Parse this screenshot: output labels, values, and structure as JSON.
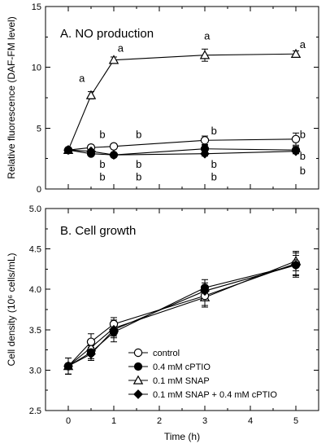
{
  "chart_data": [
    {
      "type": "line",
      "title": "A. NO production",
      "xlabel": "",
      "ylabel": "Relative fluorescence (DAF-FM level)",
      "xlim": [
        -0.5,
        5.5
      ],
      "ylim": [
        0,
        15
      ],
      "x_ticks": [
        0,
        1,
        2,
        3,
        4,
        5
      ],
      "y_ticks": [
        0,
        5,
        10,
        15
      ],
      "x_tick_labels_shown": false,
      "series": [
        {
          "name": "control",
          "marker": "circle-open",
          "x": [
            0,
            0.5,
            1,
            3,
            5
          ],
          "y": [
            3.2,
            3.4,
            3.5,
            4.0,
            4.1
          ],
          "err": [
            0.15,
            0.2,
            0.2,
            0.35,
            0.5
          ]
        },
        {
          "name": "0.4 mM cPTIO",
          "marker": "circle-filled",
          "x": [
            0,
            0.5,
            1,
            3,
            5
          ],
          "y": [
            3.2,
            2.9,
            2.8,
            3.3,
            3.2
          ],
          "err": [
            0.1,
            0.15,
            0.15,
            0.3,
            0.3
          ]
        },
        {
          "name": "0.1 mM SNAP",
          "marker": "triangle-open",
          "x": [
            0,
            0.5,
            1,
            3,
            5
          ],
          "y": [
            3.2,
            7.7,
            10.6,
            11.0,
            11.1
          ],
          "err": [
            0.1,
            0.3,
            0.25,
            0.5,
            0.25
          ]
        },
        {
          "name": "0.1 mM SNAP + 0.4 mM cPTIO",
          "marker": "diamond-filled",
          "x": [
            0,
            0.5,
            1,
            3,
            5
          ],
          "y": [
            3.2,
            3.1,
            2.8,
            2.9,
            3.1
          ],
          "err": [
            0.1,
            0.15,
            0.15,
            0.2,
            0.2
          ]
        }
      ],
      "annotations": [
        {
          "text": "a",
          "x": 1.15,
          "y": 11.3
        },
        {
          "text": "a",
          "x": 3.05,
          "y": 12.3
        },
        {
          "text": "a",
          "x": 5.15,
          "y": 11.6
        },
        {
          "text": "a",
          "x": 0.3,
          "y": 8.8
        },
        {
          "text": "b",
          "x": 0.75,
          "y": 4.2
        },
        {
          "text": "b",
          "x": 1.55,
          "y": 4.2
        },
        {
          "text": "b",
          "x": 3.2,
          "y": 4.5
        },
        {
          "text": "b",
          "x": 5.15,
          "y": 4.2
        },
        {
          "text": "b",
          "x": 0.75,
          "y": 1.75
        },
        {
          "text": "b",
          "x": 0.75,
          "y": 0.7
        },
        {
          "text": "b",
          "x": 1.55,
          "y": 1.75
        },
        {
          "text": "b",
          "x": 1.55,
          "y": 0.7
        },
        {
          "text": "b",
          "x": 3.2,
          "y": 1.75
        },
        {
          "text": "b",
          "x": 3.2,
          "y": 0.7
        },
        {
          "text": "b",
          "x": 5.15,
          "y": 2.4
        },
        {
          "text": "b",
          "x": 5.15,
          "y": 1.2
        }
      ]
    },
    {
      "type": "line",
      "title": "B. Cell growth",
      "xlabel": "Time (h)",
      "ylabel": "Cell density (10⁶ cells/mL)",
      "xlim": [
        -0.5,
        5.5
      ],
      "ylim": [
        2.5,
        5.0
      ],
      "x_ticks": [
        0,
        1,
        2,
        3,
        4,
        5
      ],
      "y_ticks": [
        2.5,
        3.0,
        3.5,
        4.0,
        4.5,
        5.0
      ],
      "x_tick_labels_shown": true,
      "legend": {
        "position": "bottom-right"
      },
      "series": [
        {
          "name": "control",
          "marker": "circle-open",
          "x": [
            0,
            0.5,
            1,
            3,
            5
          ],
          "y": [
            3.05,
            3.35,
            3.57,
            3.92,
            4.32
          ],
          "err": [
            0.1,
            0.1,
            0.08,
            0.12,
            0.15
          ]
        },
        {
          "name": "0.4 mM cPTIO",
          "marker": "circle-filled",
          "x": [
            0,
            0.5,
            1,
            3,
            5
          ],
          "y": [
            3.05,
            3.22,
            3.47,
            4.02,
            4.3
          ],
          "err": [
            0.1,
            0.08,
            0.12,
            0.1,
            0.15
          ]
        },
        {
          "name": "0.1 mM SNAP",
          "marker": "triangle-open",
          "x": [
            0,
            0.5,
            1,
            3,
            5
          ],
          "y": [
            3.05,
            3.28,
            3.52,
            3.9,
            4.35
          ],
          "err": [
            0.1,
            0.1,
            0.1,
            0.12,
            0.12
          ]
        },
        {
          "name": "0.1 mM SNAP + 0.4 mM cPTIO",
          "marker": "diamond-filled",
          "x": [
            0,
            0.5,
            1,
            3,
            5
          ],
          "y": [
            3.05,
            3.2,
            3.5,
            3.98,
            4.3
          ],
          "err": [
            0.1,
            0.08,
            0.1,
            0.1,
            0.12
          ]
        }
      ]
    }
  ]
}
